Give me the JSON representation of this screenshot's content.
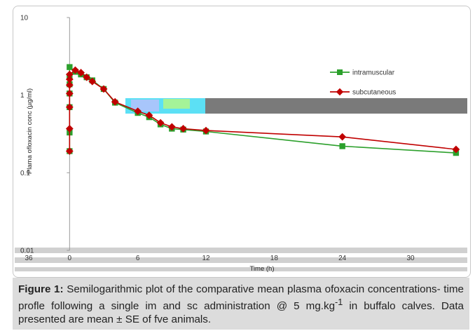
{
  "chart_data": {
    "type": "line",
    "y_scale": "log",
    "ylim": [
      0.01,
      10
    ],
    "xlim": [
      -1.5,
      34.5
    ],
    "y_ticks": [
      10,
      1,
      0.1,
      0.01
    ],
    "y_tick_labels": [
      "10",
      "1",
      "0.1",
      "0.01"
    ],
    "x_ticks": [
      0,
      6,
      12,
      18,
      24,
      30
    ],
    "x_tick_labels": [
      "0",
      "6",
      "12",
      "18",
      "24",
      "30"
    ],
    "x_extra_label": "36",
    "xlabel": "Time (h)",
    "ylabel": "Plama ofloxacin conc (µg/ml)",
    "grid": false,
    "legend_position": "top-right",
    "series": [
      {
        "name": "intramuscular",
        "color": "#2ca02c",
        "marker": "square",
        "x": [
          0,
          0,
          0,
          0,
          0,
          0,
          0,
          0.5,
          1,
          1.5,
          2,
          3,
          4,
          6,
          7,
          8,
          9,
          10,
          12,
          24,
          34
        ],
        "y": [
          0.19,
          0.33,
          0.7,
          1.05,
          1.38,
          1.75,
          2.3,
          2.0,
          1.85,
          1.7,
          1.55,
          1.2,
          0.8,
          0.59,
          0.52,
          0.42,
          0.37,
          0.36,
          0.34,
          0.22,
          0.18
        ]
      },
      {
        "name": "subcutaneous",
        "color": "#c00000",
        "marker": "diamond",
        "x": [
          0,
          0,
          0,
          0,
          0,
          0,
          0,
          0.5,
          1,
          1.5,
          2,
          3,
          4,
          6,
          7,
          8,
          9,
          10,
          12,
          24,
          34
        ],
        "y": [
          0.19,
          0.37,
          0.7,
          1.05,
          1.35,
          1.6,
          1.85,
          2.1,
          1.95,
          1.7,
          1.5,
          1.2,
          0.82,
          0.62,
          0.55,
          0.44,
          0.39,
          0.37,
          0.35,
          0.29,
          0.2
        ]
      }
    ]
  },
  "caption": {
    "label": "Figure 1:",
    "text_before_sup": " Semilogarithmic plot of the comparative mean plasma ofoxacin concentrations- time profle following a single im and sc administration @ 5 mg.kg",
    "sup": "-1",
    "text_after_sup": " in buffalo calves. Data presented are mean ± SE of fve animals."
  },
  "colors": {
    "artifact_cyan": "#5ce0f5",
    "artifact_gray": "#7a7a7a",
    "caption_bg": "#dcdcdc",
    "frame_border": "#c8c8c8"
  }
}
